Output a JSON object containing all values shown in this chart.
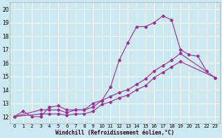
{
  "xlabel": "Windchill (Refroidissement éolien,°C)",
  "bg_color": "#cce8f0",
  "line_color": "#993399",
  "grid_color": "#ffffff",
  "ylim": [
    11.5,
    20.5
  ],
  "xlim": [
    -0.5,
    23.5
  ],
  "yticks": [
    12,
    13,
    14,
    15,
    16,
    17,
    18,
    19,
    20
  ],
  "xticks": [
    0,
    1,
    2,
    3,
    4,
    5,
    6,
    7,
    8,
    9,
    10,
    11,
    12,
    13,
    14,
    15,
    16,
    17,
    18,
    19,
    20,
    21,
    22,
    23
  ],
  "line1_x": [
    0,
    1,
    2,
    3,
    4,
    5,
    6,
    7,
    8,
    9,
    10,
    11,
    12,
    13,
    14,
    15,
    16,
    17,
    18,
    19,
    20,
    21,
    22
  ],
  "line1_y": [
    12.0,
    12.4,
    12.0,
    12.0,
    12.7,
    12.8,
    12.5,
    12.5,
    12.5,
    13.0,
    13.2,
    14.2,
    16.2,
    17.5,
    18.7,
    18.7,
    19.0,
    19.5,
    19.2,
    17.0,
    16.6,
    16.5,
    15.4
  ],
  "line2_x": [
    0,
    3,
    4,
    5,
    6,
    7,
    8,
    9,
    10,
    11,
    12,
    13,
    14,
    15,
    16,
    17,
    18,
    19,
    23
  ],
  "line2_y": [
    12.0,
    12.5,
    12.5,
    12.5,
    12.3,
    12.5,
    12.5,
    12.7,
    13.2,
    13.5,
    13.8,
    14.0,
    14.4,
    14.8,
    15.4,
    15.8,
    16.2,
    16.7,
    14.9
  ],
  "line3_x": [
    0,
    3,
    4,
    5,
    6,
    7,
    8,
    9,
    10,
    11,
    12,
    13,
    14,
    15,
    16,
    17,
    18,
    19,
    23
  ],
  "line3_y": [
    12.0,
    12.2,
    12.2,
    12.2,
    12.1,
    12.2,
    12.2,
    12.4,
    12.9,
    13.1,
    13.4,
    13.6,
    14.0,
    14.3,
    14.9,
    15.3,
    15.7,
    16.1,
    14.9
  ]
}
